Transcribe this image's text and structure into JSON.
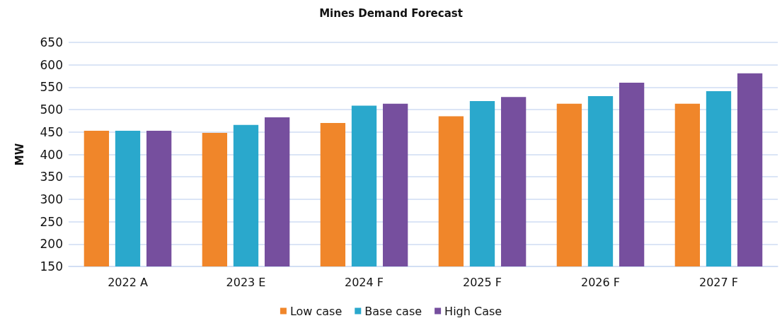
{
  "chart_data": {
    "type": "bar",
    "title": "Mines Demand Forecast",
    "ylabel": "MW",
    "categories": [
      "2022 A",
      "2023 E",
      "2024 F",
      "2025 F",
      "2026 F",
      "2027 F"
    ],
    "series": [
      {
        "name": "Low case",
        "color": "#f0862a",
        "values": [
          453,
          448,
          470,
          485,
          513,
          513
        ]
      },
      {
        "name": "Base case",
        "color": "#2aa8cc",
        "values": [
          453,
          466,
          509,
          519,
          530,
          541
        ]
      },
      {
        "name": "High Case",
        "color": "#764f9e",
        "values": [
          453,
          483,
          513,
          528,
          560,
          581
        ]
      }
    ],
    "ylim": [
      150,
      650
    ],
    "yticks": [
      150,
      200,
      250,
      300,
      350,
      400,
      450,
      500,
      550,
      600,
      650
    ],
    "grid": "y",
    "legend": "bottom"
  }
}
